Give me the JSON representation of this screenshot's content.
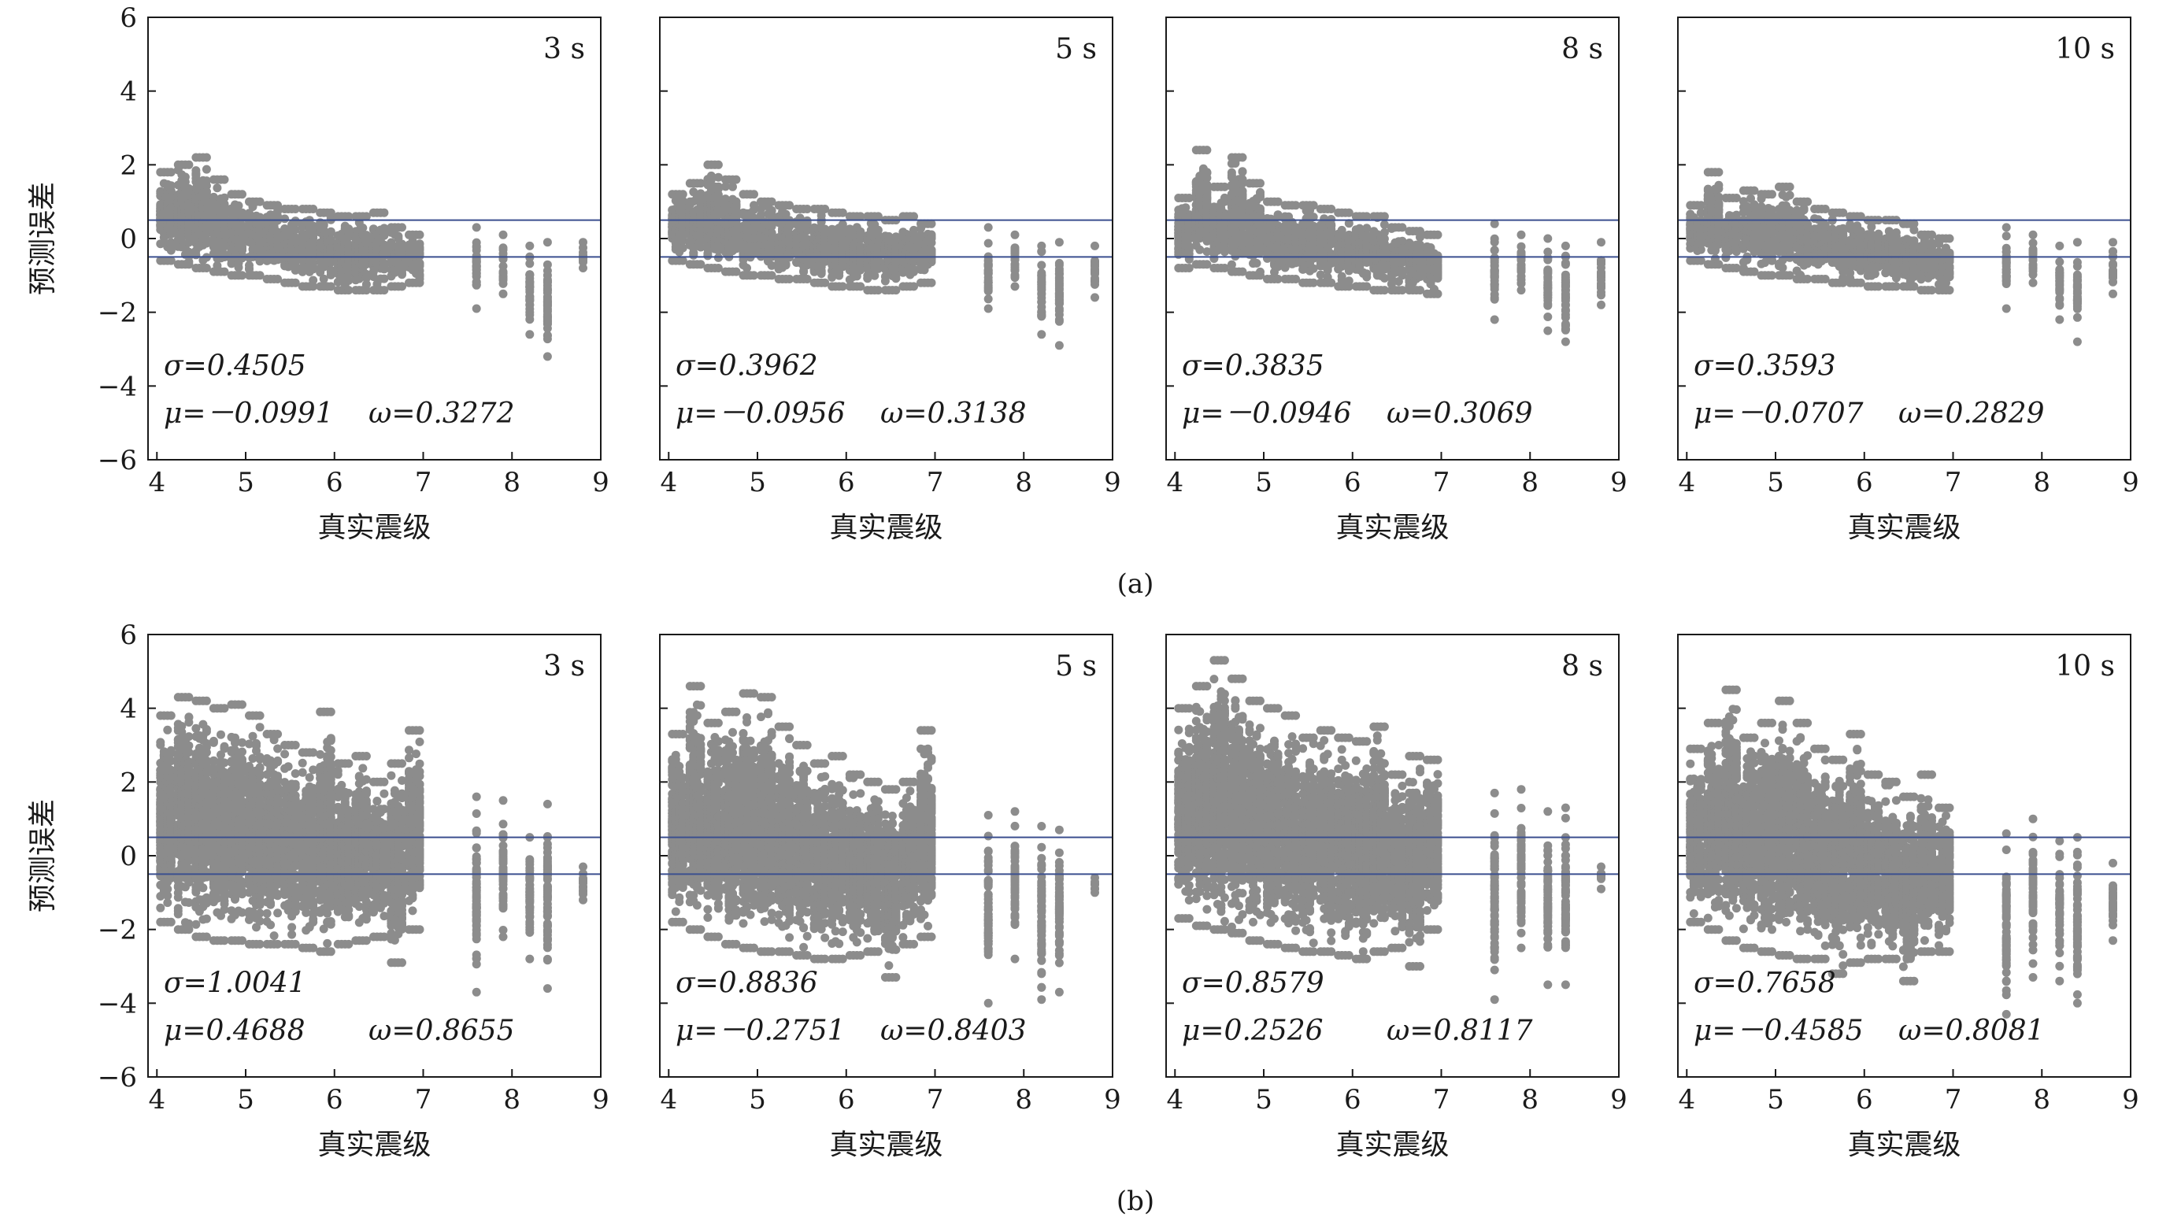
{
  "figure": {
    "captions": [
      "(a)",
      "(b)"
    ],
    "x_axis_label": "真实震级",
    "y_axis_label": "预测误差",
    "x_ticks": [
      4,
      5,
      6,
      7,
      8,
      9
    ],
    "y_ticks": [
      6,
      4,
      2,
      0,
      -2,
      -4,
      -6
    ]
  },
  "colors": {
    "points": "#8c8c8c",
    "reference_lines": "#3b4f8f",
    "axes": "#1a1a1a",
    "background": "#ffffff"
  },
  "chart_data": [
    {
      "type": "scatter",
      "row": "a",
      "panel_label": "3 s",
      "xlim": [
        3.9,
        9
      ],
      "ylim": [
        -6,
        6
      ],
      "reference_lines_y": [
        0.5,
        -0.5
      ],
      "sigma": "σ=0.4505",
      "mu": "μ=－0.0991",
      "omega": "ω=0.3272",
      "error_range_by_magnitude": [
        {
          "x": 4.1,
          "min": -0.6,
          "max": 1.8
        },
        {
          "x": 4.3,
          "min": -0.7,
          "max": 2.0
        },
        {
          "x": 4.5,
          "min": -0.8,
          "max": 2.2
        },
        {
          "x": 4.7,
          "min": -0.9,
          "max": 1.6
        },
        {
          "x": 4.9,
          "min": -1.0,
          "max": 1.2
        },
        {
          "x": 5.1,
          "min": -1.0,
          "max": 1.0
        },
        {
          "x": 5.3,
          "min": -1.1,
          "max": 0.9
        },
        {
          "x": 5.5,
          "min": -1.2,
          "max": 0.8
        },
        {
          "x": 5.7,
          "min": -1.3,
          "max": 0.8
        },
        {
          "x": 5.9,
          "min": -1.3,
          "max": 0.7
        },
        {
          "x": 6.1,
          "min": -1.4,
          "max": 0.6
        },
        {
          "x": 6.3,
          "min": -1.4,
          "max": 0.6
        },
        {
          "x": 6.5,
          "min": -1.4,
          "max": 0.7
        },
        {
          "x": 6.7,
          "min": -1.3,
          "max": 0.3
        },
        {
          "x": 6.9,
          "min": -1.2,
          "max": 0.1
        },
        {
          "x": 7.6,
          "min": -1.9,
          "max": 0.3
        },
        {
          "x": 7.9,
          "min": -1.5,
          "max": 0.1
        },
        {
          "x": 8.2,
          "min": -2.6,
          "max": -0.2
        },
        {
          "x": 8.4,
          "min": -3.2,
          "max": -0.1
        },
        {
          "x": 8.8,
          "min": -0.8,
          "max": -0.1
        }
      ]
    },
    {
      "type": "scatter",
      "row": "a",
      "panel_label": "5 s",
      "xlim": [
        3.9,
        9
      ],
      "ylim": [
        -6,
        6
      ],
      "reference_lines_y": [
        0.5,
        -0.5
      ],
      "sigma": "σ=0.3962",
      "mu": "μ=－0.0956",
      "omega": "ω=0.3138",
      "error_range_by_magnitude": [
        {
          "x": 4.1,
          "min": -0.6,
          "max": 1.2
        },
        {
          "x": 4.3,
          "min": -0.7,
          "max": 1.5
        },
        {
          "x": 4.5,
          "min": -0.8,
          "max": 2.0
        },
        {
          "x": 4.7,
          "min": -0.9,
          "max": 1.6
        },
        {
          "x": 4.9,
          "min": -1.0,
          "max": 1.2
        },
        {
          "x": 5.1,
          "min": -1.0,
          "max": 1.0
        },
        {
          "x": 5.3,
          "min": -1.1,
          "max": 0.9
        },
        {
          "x": 5.5,
          "min": -1.1,
          "max": 0.8
        },
        {
          "x": 5.7,
          "min": -1.2,
          "max": 0.8
        },
        {
          "x": 5.9,
          "min": -1.3,
          "max": 0.7
        },
        {
          "x": 6.1,
          "min": -1.3,
          "max": 0.6
        },
        {
          "x": 6.3,
          "min": -1.4,
          "max": 0.6
        },
        {
          "x": 6.5,
          "min": -1.4,
          "max": 0.5
        },
        {
          "x": 6.7,
          "min": -1.3,
          "max": 0.6
        },
        {
          "x": 6.9,
          "min": -1.2,
          "max": 0.4
        },
        {
          "x": 7.6,
          "min": -1.9,
          "max": 0.3
        },
        {
          "x": 7.9,
          "min": -1.3,
          "max": 0.1
        },
        {
          "x": 8.2,
          "min": -2.6,
          "max": -0.2
        },
        {
          "x": 8.4,
          "min": -2.9,
          "max": -0.1
        },
        {
          "x": 8.8,
          "min": -1.6,
          "max": -0.2
        }
      ]
    },
    {
      "type": "scatter",
      "row": "a",
      "panel_label": "8 s",
      "xlim": [
        3.9,
        9
      ],
      "ylim": [
        -6,
        6
      ],
      "reference_lines_y": [
        0.5,
        -0.5
      ],
      "sigma": "σ=0.3835",
      "mu": "μ=－0.0946",
      "omega": "ω=0.3069",
      "error_range_by_magnitude": [
        {
          "x": 4.1,
          "min": -0.8,
          "max": 1.1
        },
        {
          "x": 4.3,
          "min": -0.7,
          "max": 2.4
        },
        {
          "x": 4.5,
          "min": -0.8,
          "max": 1.4
        },
        {
          "x": 4.7,
          "min": -0.9,
          "max": 2.2
        },
        {
          "x": 4.9,
          "min": -1.0,
          "max": 1.5
        },
        {
          "x": 5.1,
          "min": -1.1,
          "max": 1.0
        },
        {
          "x": 5.3,
          "min": -1.1,
          "max": 0.9
        },
        {
          "x": 5.5,
          "min": -1.2,
          "max": 0.9
        },
        {
          "x": 5.7,
          "min": -1.2,
          "max": 0.8
        },
        {
          "x": 5.9,
          "min": -1.3,
          "max": 0.7
        },
        {
          "x": 6.1,
          "min": -1.3,
          "max": 0.6
        },
        {
          "x": 6.3,
          "min": -1.4,
          "max": 0.6
        },
        {
          "x": 6.5,
          "min": -1.4,
          "max": 0.3
        },
        {
          "x": 6.7,
          "min": -1.4,
          "max": 0.2
        },
        {
          "x": 6.9,
          "min": -1.5,
          "max": 0.1
        },
        {
          "x": 7.6,
          "min": -2.2,
          "max": 0.4
        },
        {
          "x": 7.9,
          "min": -1.4,
          "max": 0.1
        },
        {
          "x": 8.2,
          "min": -2.5,
          "max": 0.0
        },
        {
          "x": 8.4,
          "min": -2.8,
          "max": -0.2
        },
        {
          "x": 8.8,
          "min": -1.8,
          "max": -0.1
        }
      ]
    },
    {
      "type": "scatter",
      "row": "a",
      "panel_label": "10 s",
      "xlim": [
        3.9,
        9
      ],
      "ylim": [
        -6,
        6
      ],
      "reference_lines_y": [
        0.5,
        -0.5
      ],
      "sigma": "σ=0.3593",
      "mu": "μ=－0.0707",
      "omega": "ω=0.2829",
      "error_range_by_magnitude": [
        {
          "x": 4.1,
          "min": -0.6,
          "max": 0.9
        },
        {
          "x": 4.3,
          "min": -0.7,
          "max": 1.8
        },
        {
          "x": 4.5,
          "min": -0.8,
          "max": 1.1
        },
        {
          "x": 4.7,
          "min": -0.9,
          "max": 1.3
        },
        {
          "x": 4.9,
          "min": -1.0,
          "max": 1.2
        },
        {
          "x": 5.1,
          "min": -1.0,
          "max": 1.4
        },
        {
          "x": 5.3,
          "min": -1.1,
          "max": 1.0
        },
        {
          "x": 5.5,
          "min": -1.1,
          "max": 0.8
        },
        {
          "x": 5.7,
          "min": -1.2,
          "max": 0.7
        },
        {
          "x": 5.9,
          "min": -1.2,
          "max": 0.6
        },
        {
          "x": 6.1,
          "min": -1.3,
          "max": 0.5
        },
        {
          "x": 6.3,
          "min": -1.3,
          "max": 0.5
        },
        {
          "x": 6.5,
          "min": -1.3,
          "max": 0.4
        },
        {
          "x": 6.7,
          "min": -1.4,
          "max": 0.1
        },
        {
          "x": 6.9,
          "min": -1.4,
          "max": 0.0
        },
        {
          "x": 7.6,
          "min": -1.9,
          "max": 0.3
        },
        {
          "x": 7.9,
          "min": -1.2,
          "max": 0.1
        },
        {
          "x": 8.2,
          "min": -2.2,
          "max": -0.2
        },
        {
          "x": 8.4,
          "min": -2.8,
          "max": -0.1
        },
        {
          "x": 8.8,
          "min": -1.5,
          "max": -0.1
        }
      ]
    },
    {
      "type": "scatter",
      "row": "b",
      "panel_label": "3 s",
      "xlim": [
        3.9,
        9
      ],
      "ylim": [
        -6,
        6
      ],
      "reference_lines_y": [
        0.5,
        -0.5
      ],
      "sigma": "σ=1.0041",
      "mu": "μ=0.4688",
      "omega": "ω=0.8655",
      "error_range_by_magnitude": [
        {
          "x": 4.1,
          "min": -1.8,
          "max": 3.8
        },
        {
          "x": 4.3,
          "min": -2.0,
          "max": 4.3
        },
        {
          "x": 4.5,
          "min": -2.2,
          "max": 4.2
        },
        {
          "x": 4.7,
          "min": -2.3,
          "max": 4.0
        },
        {
          "x": 4.9,
          "min": -2.3,
          "max": 4.1
        },
        {
          "x": 5.1,
          "min": -2.4,
          "max": 3.8
        },
        {
          "x": 5.3,
          "min": -2.4,
          "max": 3.3
        },
        {
          "x": 5.5,
          "min": -2.4,
          "max": 3.0
        },
        {
          "x": 5.7,
          "min": -2.5,
          "max": 2.8
        },
        {
          "x": 5.9,
          "min": -2.6,
          "max": 3.9
        },
        {
          "x": 6.1,
          "min": -2.4,
          "max": 2.5
        },
        {
          "x": 6.3,
          "min": -2.3,
          "max": 2.7
        },
        {
          "x": 6.5,
          "min": -2.2,
          "max": 2.0
        },
        {
          "x": 6.7,
          "min": -2.9,
          "max": 2.5
        },
        {
          "x": 6.9,
          "min": -2.0,
          "max": 3.4
        },
        {
          "x": 7.6,
          "min": -3.7,
          "max": 1.6
        },
        {
          "x": 7.9,
          "min": -2.2,
          "max": 1.5
        },
        {
          "x": 8.2,
          "min": -2.8,
          "max": 0.5
        },
        {
          "x": 8.4,
          "min": -3.6,
          "max": 1.4
        },
        {
          "x": 8.8,
          "min": -1.2,
          "max": -0.3
        }
      ]
    },
    {
      "type": "scatter",
      "row": "b",
      "panel_label": "5 s",
      "xlim": [
        3.9,
        9
      ],
      "ylim": [
        -6,
        6
      ],
      "reference_lines_y": [
        0.5,
        -0.5
      ],
      "sigma": "σ=0.8836",
      "mu": "μ=－0.2751",
      "omega": "ω=0.8403",
      "error_range_by_magnitude": [
        {
          "x": 4.1,
          "min": -1.8,
          "max": 3.3
        },
        {
          "x": 4.3,
          "min": -2.0,
          "max": 4.6
        },
        {
          "x": 4.5,
          "min": -2.2,
          "max": 3.6
        },
        {
          "x": 4.7,
          "min": -2.4,
          "max": 3.9
        },
        {
          "x": 4.9,
          "min": -2.5,
          "max": 4.4
        },
        {
          "x": 5.1,
          "min": -2.6,
          "max": 4.3
        },
        {
          "x": 5.3,
          "min": -2.6,
          "max": 3.5
        },
        {
          "x": 5.5,
          "min": -2.7,
          "max": 3.0
        },
        {
          "x": 5.7,
          "min": -2.8,
          "max": 2.5
        },
        {
          "x": 5.9,
          "min": -2.8,
          "max": 2.7
        },
        {
          "x": 6.1,
          "min": -2.7,
          "max": 2.2
        },
        {
          "x": 6.3,
          "min": -2.6,
          "max": 2.0
        },
        {
          "x": 6.5,
          "min": -3.3,
          "max": 1.8
        },
        {
          "x": 6.7,
          "min": -2.4,
          "max": 2.0
        },
        {
          "x": 6.9,
          "min": -2.2,
          "max": 3.4
        },
        {
          "x": 7.6,
          "min": -4.0,
          "max": 1.1
        },
        {
          "x": 7.9,
          "min": -2.8,
          "max": 1.2
        },
        {
          "x": 8.2,
          "min": -3.9,
          "max": 0.8
        },
        {
          "x": 8.4,
          "min": -3.7,
          "max": 0.7
        },
        {
          "x": 8.8,
          "min": -1.0,
          "max": -0.6
        }
      ]
    },
    {
      "type": "scatter",
      "row": "b",
      "panel_label": "8 s",
      "xlim": [
        3.9,
        9
      ],
      "ylim": [
        -6,
        6
      ],
      "reference_lines_y": [
        0.5,
        -0.5
      ],
      "sigma": "σ=0.8579",
      "mu": "μ=0.2526",
      "omega": "ω=0.8117",
      "error_range_by_magnitude": [
        {
          "x": 4.1,
          "min": -1.7,
          "max": 4.0
        },
        {
          "x": 4.3,
          "min": -1.9,
          "max": 4.6
        },
        {
          "x": 4.5,
          "min": -2.0,
          "max": 5.3
        },
        {
          "x": 4.7,
          "min": -2.1,
          "max": 4.8
        },
        {
          "x": 4.9,
          "min": -2.3,
          "max": 4.2
        },
        {
          "x": 5.1,
          "min": -2.4,
          "max": 4.0
        },
        {
          "x": 5.3,
          "min": -2.5,
          "max": 3.8
        },
        {
          "x": 5.5,
          "min": -2.6,
          "max": 3.2
        },
        {
          "x": 5.7,
          "min": -2.6,
          "max": 3.4
        },
        {
          "x": 5.9,
          "min": -2.7,
          "max": 3.2
        },
        {
          "x": 6.1,
          "min": -2.8,
          "max": 3.1
        },
        {
          "x": 6.3,
          "min": -2.6,
          "max": 3.5
        },
        {
          "x": 6.5,
          "min": -2.5,
          "max": 2.2
        },
        {
          "x": 6.7,
          "min": -3.0,
          "max": 2.7
        },
        {
          "x": 6.9,
          "min": -2.0,
          "max": 2.6
        },
        {
          "x": 7.6,
          "min": -3.9,
          "max": 1.7
        },
        {
          "x": 7.9,
          "min": -2.5,
          "max": 1.8
        },
        {
          "x": 8.2,
          "min": -3.5,
          "max": 1.2
        },
        {
          "x": 8.4,
          "min": -3.5,
          "max": 1.3
        },
        {
          "x": 8.8,
          "min": -0.9,
          "max": -0.3
        }
      ]
    },
    {
      "type": "scatter",
      "row": "b",
      "panel_label": "10 s",
      "xlim": [
        3.9,
        9
      ],
      "ylim": [
        -6,
        6
      ],
      "reference_lines_y": [
        0.5,
        -0.5
      ],
      "sigma": "σ=0.7658",
      "mu": "μ=－0.4585",
      "omega": "ω=0.8081",
      "error_range_by_magnitude": [
        {
          "x": 4.1,
          "min": -1.8,
          "max": 2.9
        },
        {
          "x": 4.3,
          "min": -2.0,
          "max": 3.6
        },
        {
          "x": 4.5,
          "min": -2.3,
          "max": 4.5
        },
        {
          "x": 4.7,
          "min": -2.5,
          "max": 3.2
        },
        {
          "x": 4.9,
          "min": -2.6,
          "max": 3.6
        },
        {
          "x": 5.1,
          "min": -2.7,
          "max": 4.2
        },
        {
          "x": 5.3,
          "min": -2.8,
          "max": 3.6
        },
        {
          "x": 5.5,
          "min": -2.8,
          "max": 2.9
        },
        {
          "x": 5.7,
          "min": -3.2,
          "max": 2.6
        },
        {
          "x": 5.9,
          "min": -2.9,
          "max": 3.3
        },
        {
          "x": 6.1,
          "min": -2.8,
          "max": 2.2
        },
        {
          "x": 6.3,
          "min": -2.8,
          "max": 2.0
        },
        {
          "x": 6.5,
          "min": -3.4,
          "max": 1.6
        },
        {
          "x": 6.7,
          "min": -2.6,
          "max": 2.2
        },
        {
          "x": 6.9,
          "min": -2.6,
          "max": 1.3
        },
        {
          "x": 7.6,
          "min": -4.3,
          "max": 0.6
        },
        {
          "x": 7.9,
          "min": -3.3,
          "max": 1.0
        },
        {
          "x": 8.2,
          "min": -3.4,
          "max": 0.4
        },
        {
          "x": 8.4,
          "min": -4.0,
          "max": 0.5
        },
        {
          "x": 8.8,
          "min": -2.3,
          "max": -0.2
        }
      ]
    }
  ]
}
